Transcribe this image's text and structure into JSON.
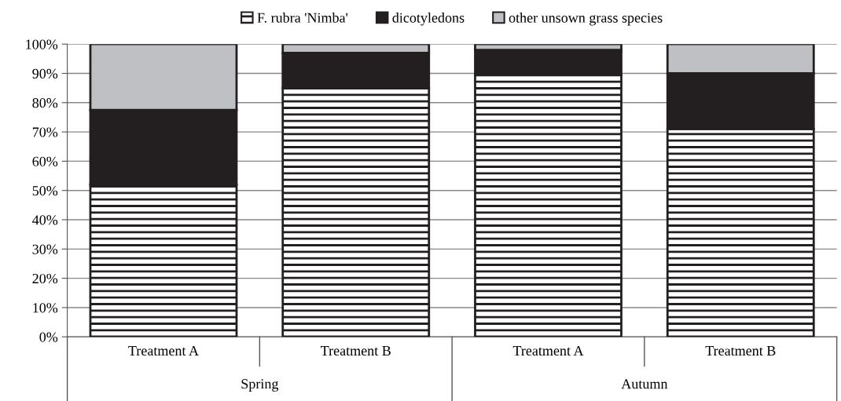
{
  "chart_data": {
    "type": "bar",
    "stacked": true,
    "categories": [
      "Treatment A",
      "Treatment B",
      "Treatment A",
      "Treatment B"
    ],
    "series": [
      {
        "name": "F. rubra 'Nimba'",
        "color": "#231f20",
        "values": [
          52,
          85,
          89.5,
          71
        ]
      },
      {
        "name": "dicotyledons",
        "color": "#231f20",
        "values": [
          25.5,
          12,
          8.5,
          19
        ]
      },
      {
        "name": "other unsown grass species",
        "color": "#bfc0c3",
        "values": [
          22.5,
          3,
          2,
          10
        ]
      }
    ],
    "ylim": [
      0,
      100
    ],
    "yticks": [
      {
        "value": 0,
        "label": "0%"
      },
      {
        "value": 10,
        "label": "10%"
      },
      {
        "value": 20,
        "label": "20%"
      },
      {
        "value": 30,
        "label": "30%"
      },
      {
        "value": 40,
        "label": "40%"
      },
      {
        "value": 50,
        "label": "50%"
      },
      {
        "value": 60,
        "label": "60%"
      },
      {
        "value": 70,
        "label": "70%"
      },
      {
        "value": 80,
        "label": "80%"
      },
      {
        "value": 90,
        "label": "90%"
      },
      {
        "value": 100,
        "label": "100%"
      }
    ],
    "annotations": [
      "Spring",
      "Autumn"
    ],
    "grid": "y",
    "legend": "top"
  }
}
